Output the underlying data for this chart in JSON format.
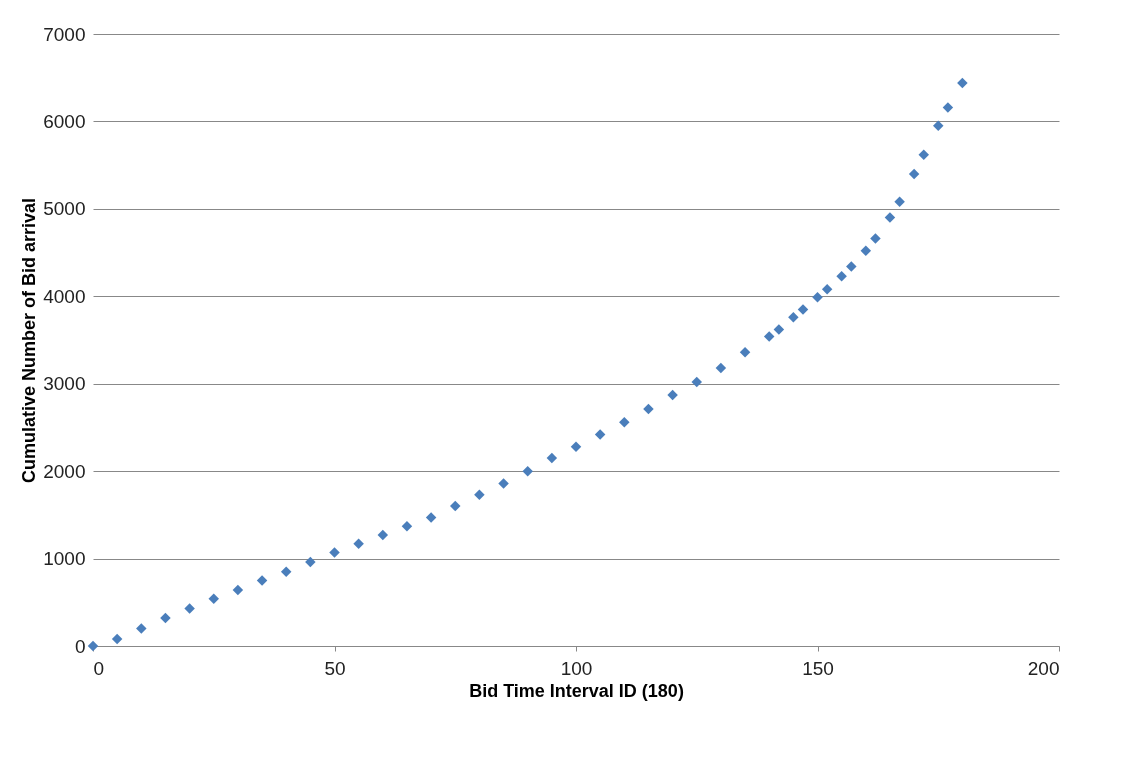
{
  "chart_data": {
    "type": "scatter",
    "xlabel": "Bid Time Interval ID (180)",
    "ylabel": "Cumulative Number of Bid arrival",
    "x": [
      0,
      5,
      10,
      15,
      20,
      25,
      30,
      35,
      40,
      45,
      50,
      55,
      60,
      65,
      70,
      75,
      80,
      85,
      90,
      95,
      100,
      105,
      110,
      115,
      120,
      125,
      130,
      135,
      140,
      142,
      145,
      147,
      150,
      152,
      155,
      157,
      160,
      162,
      165,
      167,
      170,
      172,
      175,
      177,
      180
    ],
    "series": [
      {
        "color": "#4a7ebb",
        "values": [
          0,
          80,
          200,
          320,
          430,
          540,
          640,
          750,
          850,
          960,
          1070,
          1170,
          1270,
          1370,
          1470,
          1600,
          1730,
          1860,
          2000,
          2150,
          2280,
          2420,
          2560,
          2710,
          2870,
          3020,
          3180,
          3360,
          3540,
          3620,
          3760,
          3850,
          3990,
          4080,
          4230,
          4340,
          4520,
          4660,
          4900,
          5080,
          5400,
          5620,
          5950,
          6160,
          6440
        ]
      }
    ],
    "xlim": [
      0,
      200
    ],
    "xticks": [
      0,
      50,
      100,
      150,
      200
    ],
    "ylim": [
      0,
      7000
    ],
    "yticks": [
      0,
      1000,
      2000,
      3000,
      4000,
      5000,
      6000,
      7000
    ],
    "grid": "y",
    "marker": "diamond"
  }
}
